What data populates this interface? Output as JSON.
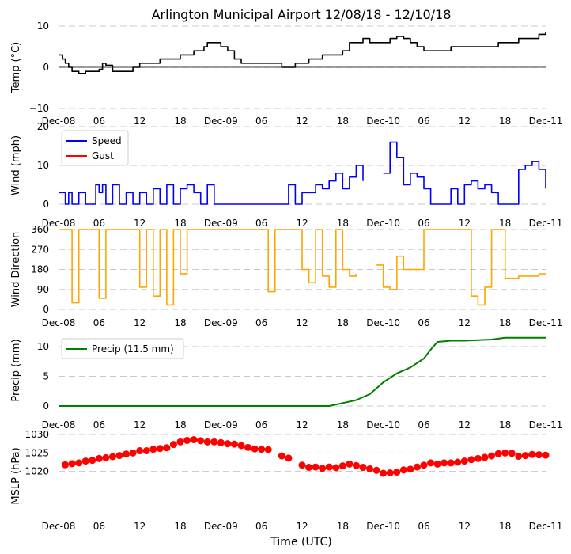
{
  "title": "Arlington Municipal Airport 12/08/18 - 12/10/18",
  "xlabel": "Time (UTC)",
  "x_ticks": [
    "Dec-08",
    "06",
    "12",
    "18",
    "Dec-09",
    "06",
    "12",
    "18",
    "Dec-10",
    "06",
    "12",
    "18",
    "Dec-11"
  ],
  "colors": {
    "temp": "#000000",
    "speed": "#0000ff",
    "gust": "#ff0000",
    "dir": "#ffa500",
    "precip": "#008000",
    "mslp": "#ff0000",
    "grid": "#c8c8c8"
  },
  "chart_data": [
    {
      "type": "line",
      "ylabel": "Temp (°C)",
      "ylim": [
        -10,
        10
      ],
      "yticks": [
        "−10",
        "0",
        "10"
      ],
      "ytick_values": [
        -10,
        0,
        10
      ],
      "grid": true,
      "x_hours": [
        0,
        0.6,
        1,
        1.5,
        2,
        2.6,
        3,
        4,
        5,
        6,
        6.5,
        7,
        8,
        9,
        10,
        11,
        12,
        13,
        14,
        15,
        16,
        17,
        18,
        19,
        20,
        21,
        21.5,
        22,
        23,
        24,
        25,
        26,
        27,
        28,
        29,
        30,
        31,
        32,
        33,
        34,
        35,
        36,
        37,
        38,
        39,
        40,
        41,
        42,
        43,
        44,
        45,
        46,
        47,
        48,
        49,
        50,
        51,
        52,
        53,
        54,
        55,
        56,
        57,
        58,
        59,
        60,
        61,
        62,
        63,
        64,
        65,
        66,
        67,
        68,
        69,
        70,
        71,
        72
      ],
      "series": [
        {
          "values": [
            3,
            2,
            1,
            0,
            -1,
            -1,
            -1.5,
            -1,
            -1,
            -0.5,
            1,
            0.5,
            -1,
            -1,
            -1,
            0,
            1,
            1,
            1,
            2,
            2,
            2,
            3,
            3,
            4,
            4,
            5,
            6,
            6,
            5,
            4,
            2,
            1,
            1,
            1,
            1,
            1,
            1,
            0,
            0,
            1,
            1,
            2,
            2,
            3,
            3,
            3,
            4,
            6,
            6,
            7,
            6,
            6,
            6,
            7,
            7.5,
            7,
            6,
            5,
            4,
            4,
            4,
            4,
            5,
            5,
            5,
            5,
            5,
            5,
            5,
            6,
            6,
            6,
            7,
            7,
            7,
            8,
            8.5
          ]
        }
      ]
    },
    {
      "type": "line",
      "ylabel": "Wind (mph)",
      "ylim": [
        0,
        20
      ],
      "yticks": [
        "0",
        "10",
        "20"
      ],
      "ytick_values": [
        0,
        10,
        20
      ],
      "grid": true,
      "legend": [
        "Speed",
        "Gust"
      ],
      "legend_placement": "upper-left",
      "x_hours": [
        0,
        0.5,
        1,
        1.5,
        2,
        3,
        4,
        5,
        5.5,
        6,
        6.5,
        7,
        8,
        9,
        10,
        11,
        12,
        13,
        14,
        15,
        16,
        17,
        18,
        19,
        20,
        21,
        22,
        23,
        24,
        25,
        26,
        27,
        28,
        29,
        30,
        31,
        32,
        33,
        34,
        35,
        36,
        37,
        38,
        39,
        40,
        41,
        42,
        43,
        44,
        45,
        46,
        47,
        48,
        49,
        50,
        51,
        52,
        53,
        54,
        55,
        56,
        57,
        58,
        59,
        60,
        61,
        62,
        63,
        64,
        65,
        66,
        67,
        68,
        69,
        70,
        71,
        72
      ],
      "series": [
        {
          "name": "Speed",
          "values": [
            3,
            3,
            0,
            3,
            0,
            3,
            0,
            0,
            5,
            3,
            5,
            0,
            5,
            0,
            3,
            0,
            3,
            0,
            4,
            0,
            5,
            0,
            4,
            5,
            3,
            0,
            5,
            0,
            0,
            0,
            0,
            0,
            0,
            0,
            0,
            0,
            0,
            0,
            5,
            0,
            3,
            3,
            5,
            4,
            6,
            8,
            4,
            7,
            10,
            6,
            null,
            null,
            8,
            16,
            12,
            5,
            8,
            7,
            4,
            0,
            0,
            0,
            4,
            0,
            5,
            6,
            4,
            5,
            3,
            0,
            0,
            0,
            9,
            10,
            11,
            9,
            4
          ]
        },
        {
          "name": "Gust",
          "values": []
        }
      ]
    },
    {
      "type": "line",
      "ylabel": "Wind Direction",
      "ylim": [
        0,
        360
      ],
      "yticks": [
        "0",
        "90",
        "180",
        "270",
        "360"
      ],
      "ytick_values": [
        0,
        90,
        180,
        270,
        360
      ],
      "grid": true,
      "x_hours": [
        0,
        1,
        2,
        3,
        4,
        5,
        6,
        7,
        8,
        9,
        10,
        11,
        12,
        13,
        14,
        15,
        16,
        17,
        18,
        19,
        20,
        21,
        22,
        23,
        24,
        25,
        26,
        27,
        28,
        29,
        30,
        31,
        32,
        33,
        34,
        35,
        36,
        37,
        38,
        39,
        40,
        41,
        42,
        43,
        44,
        45,
        46,
        47,
        48,
        49,
        50,
        51,
        52,
        53,
        54,
        55,
        56,
        57,
        58,
        59,
        60,
        61,
        62,
        63,
        64,
        65,
        66,
        67,
        68,
        69,
        70,
        71,
        72
      ],
      "series": [
        {
          "values": [
            360,
            360,
            30,
            360,
            360,
            360,
            50,
            360,
            360,
            360,
            360,
            360,
            100,
            360,
            60,
            360,
            20,
            360,
            160,
            360,
            360,
            360,
            360,
            360,
            360,
            360,
            360,
            360,
            360,
            360,
            360,
            80,
            360,
            360,
            360,
            360,
            180,
            120,
            360,
            150,
            100,
            360,
            180,
            150,
            160,
            null,
            null,
            200,
            100,
            90,
            240,
            180,
            180,
            180,
            360,
            360,
            360,
            360,
            360,
            360,
            360,
            60,
            20,
            100,
            360,
            360,
            140,
            140,
            150,
            150,
            150,
            160,
            160
          ]
        }
      ]
    },
    {
      "type": "line",
      "ylabel": "Precip (mm)",
      "ylim": [
        0,
        12
      ],
      "yticks": [
        "0",
        "5",
        "10"
      ],
      "ytick_values": [
        0,
        5,
        10
      ],
      "grid": true,
      "legend": [
        "Precip (11.5 mm)"
      ],
      "legend_placement": "upper-left",
      "x_hours": [
        0,
        6,
        12,
        18,
        24,
        30,
        36,
        40,
        42,
        44,
        46,
        48,
        50,
        52,
        54,
        55,
        56,
        58,
        60,
        62,
        64,
        66,
        68,
        70,
        72
      ],
      "series": [
        {
          "values": [
            0,
            0,
            0,
            0,
            0,
            0,
            0,
            0,
            0.5,
            1,
            2,
            4,
            5.5,
            6.5,
            8,
            9.5,
            10.8,
            11,
            11,
            11.1,
            11.2,
            11.5,
            11.5,
            11.5,
            11.5
          ]
        }
      ]
    },
    {
      "type": "scatter",
      "ylabel": "MSLP (hPa)",
      "ylim": [
        1015,
        1030
      ],
      "yticks": [
        "1020",
        "1025",
        "1030"
      ],
      "ytick_values": [
        1020,
        1025,
        1030
      ],
      "grid": true,
      "x_hours": [
        1,
        2,
        3,
        4,
        5,
        6,
        7,
        8,
        9,
        10,
        11,
        12,
        13,
        14,
        15,
        16,
        17,
        18,
        19,
        20,
        21,
        22,
        23,
        24,
        25,
        26,
        27,
        28,
        29,
        30,
        31,
        33,
        34,
        36,
        37,
        38,
        39,
        40,
        41,
        42,
        43,
        44,
        45,
        46,
        47,
        48,
        49,
        50,
        51,
        52,
        53,
        54,
        55,
        56,
        57,
        58,
        59,
        60,
        61,
        62,
        63,
        64,
        65,
        66,
        67,
        68,
        69,
        70,
        71,
        72
      ],
      "series": [
        {
          "values": [
            1021.8,
            1022.1,
            1022.3,
            1022.8,
            1023,
            1023.5,
            1023.7,
            1024,
            1024.3,
            1024.7,
            1025,
            1025.6,
            1025.6,
            1026,
            1026.2,
            1026.4,
            1027.3,
            1028,
            1028.4,
            1028.6,
            1028.3,
            1028,
            1028,
            1027.8,
            1027.5,
            1027.4,
            1027,
            1026.5,
            1026.1,
            1026,
            1025.9,
            1024.2,
            1023.6,
            1021.7,
            1021.1,
            1021.2,
            1020.8,
            1021.2,
            1021,
            1021.5,
            1022,
            1021.6,
            1021.1,
            1020.7,
            1020.3,
            1019.5,
            1019.6,
            1019.8,
            1020.4,
            1020.6,
            1021.2,
            1021.7,
            1022.3,
            1022,
            1022.3,
            1022.3,
            1022.5,
            1022.8,
            1023.2,
            1023.5,
            1023.8,
            1024.2,
            1024.8,
            1025,
            1024.9,
            1024.1,
            1024.3,
            1024.6,
            1024.5,
            1024.4
          ]
        }
      ]
    }
  ]
}
